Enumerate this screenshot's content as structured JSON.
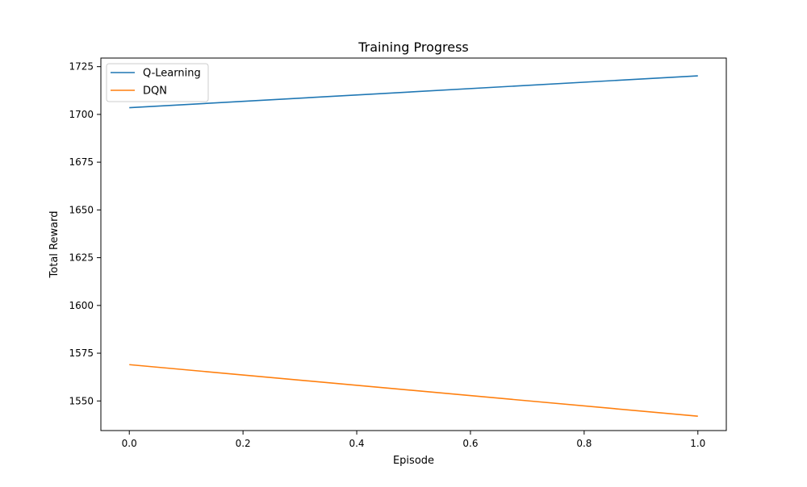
{
  "chart_data": {
    "type": "line",
    "title": "Training Progress",
    "xlabel": "Episode",
    "ylabel": "Total Reward",
    "x": [
      0.0,
      1.0
    ],
    "xlim": [
      -0.05,
      1.05
    ],
    "ylim": [
      1534.5,
      1729.5
    ],
    "xticks": [
      "0.0",
      "0.2",
      "0.4",
      "0.6",
      "0.8",
      "1.0"
    ],
    "yticks": [
      "1550",
      "1575",
      "1600",
      "1625",
      "1650",
      "1675",
      "1700",
      "1725"
    ],
    "grid": false,
    "legend_position": "upper-left",
    "series": [
      {
        "name": "Q-Learning",
        "color": "#1f77b4",
        "values": [
          1703.5,
          1720.2
        ]
      },
      {
        "name": "DQN",
        "color": "#ff7f0e",
        "values": [
          1569.0,
          1542.0
        ]
      }
    ]
  }
}
